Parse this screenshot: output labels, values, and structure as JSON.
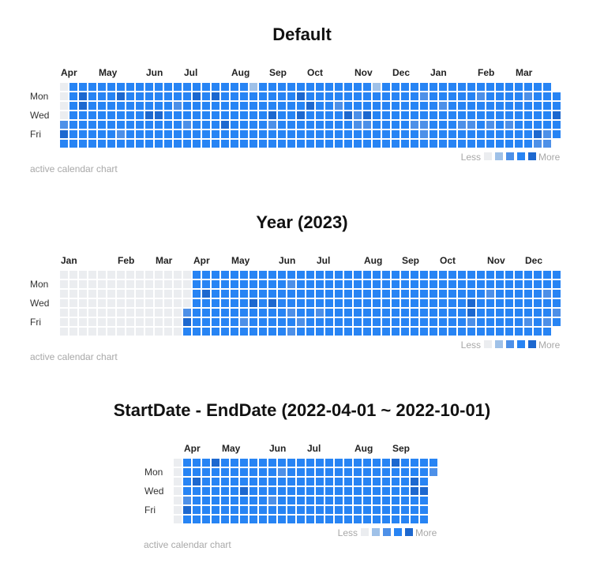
{
  "caption_text": "active calendar chart",
  "legend": {
    "less_label": "Less",
    "more_label": "More",
    "colors": [
      "#EBEDF0",
      "#9FC1E8",
      "#4D90E8",
      "#2784F4",
      "#1D68CF"
    ]
  },
  "day_labels": [
    "Mon",
    "Wed",
    "Fri"
  ],
  "chart_data": [
    {
      "type": "heatmap",
      "title": "Default",
      "weeks": 53,
      "month_labels": [
        {
          "label": "Apr",
          "week": 0
        },
        {
          "label": "May",
          "week": 4
        },
        {
          "label": "Jun",
          "week": 9
        },
        {
          "label": "Jul",
          "week": 13
        },
        {
          "label": "Aug",
          "week": 18
        },
        {
          "label": "Sep",
          "week": 22
        },
        {
          "label": "Oct",
          "week": 26
        },
        {
          "label": "Nov",
          "week": 31
        },
        {
          "label": "Dec",
          "week": 35
        },
        {
          "label": "Jan",
          "week": 39
        },
        {
          "label": "Feb",
          "week": 44
        },
        {
          "label": "Mar",
          "week": 48
        }
      ],
      "levels": [
        "0333333333333333333313333333333331333333333333333333",
        "03433343333333434333333334333333333333233333233332333",
        "03433333333323333333333333433233333333332333333333333",
        "03333333344333333333334334333342433333333333333333334",
        "23333333333332333433332333333332233332233322323233333",
        "43333323333333333333333333333333333333233333333333423",
        "3333333333333333333333333333333333333333333333333322"
      ]
    },
    {
      "type": "heatmap",
      "title": "Year (2023)",
      "weeks": 53,
      "month_labels": [
        {
          "label": "Jan",
          "week": 0
        },
        {
          "label": "Feb",
          "week": 6
        },
        {
          "label": "Mar",
          "week": 10
        },
        {
          "label": "Apr",
          "week": 14
        },
        {
          "label": "May",
          "week": 18
        },
        {
          "label": "Jun",
          "week": 23
        },
        {
          "label": "Jul",
          "week": 27
        },
        {
          "label": "Aug",
          "week": 32
        },
        {
          "label": "Sep",
          "week": 36
        },
        {
          "label": "Oct",
          "week": 40
        },
        {
          "label": "Nov",
          "week": 45
        },
        {
          "label": "Dec",
          "week": 49
        }
      ],
      "levels": [
        "00000000000000333333333333333333333333333333333333333",
        "00000000000000333333333323333333333333333333333333333",
        "00000000000000343333333333333333333333333333323333323",
        "00000000000000333333434333333333333333333334333333333",
        "00000000000002333333333323323333333333333334333333332",
        "00000000000004333332333332333333333333333332333332323",
        "0000000000000333333333332333333333333333333333333333"
      ]
    },
    {
      "type": "heatmap",
      "title": "StartDate - EndDate (2022-04-01 ~ 2022-10-01)",
      "weeks": 28,
      "month_labels": [
        {
          "label": "Apr",
          "week": 1
        },
        {
          "label": "May",
          "week": 5
        },
        {
          "label": "Jun",
          "week": 10
        },
        {
          "label": "Jul",
          "week": 14
        },
        {
          "label": "Aug",
          "week": 19
        },
        {
          "label": "Sep",
          "week": 23
        }
      ],
      "levels": [
        "0333433333333333333333343333",
        "0333333333323333333333333332",
        "034333333333333333333333343",
        "033333343333333333333333344",
        "023333333323333333333333333",
        "043333333333333333333333333",
        "033333333333333333333333333"
      ]
    }
  ]
}
